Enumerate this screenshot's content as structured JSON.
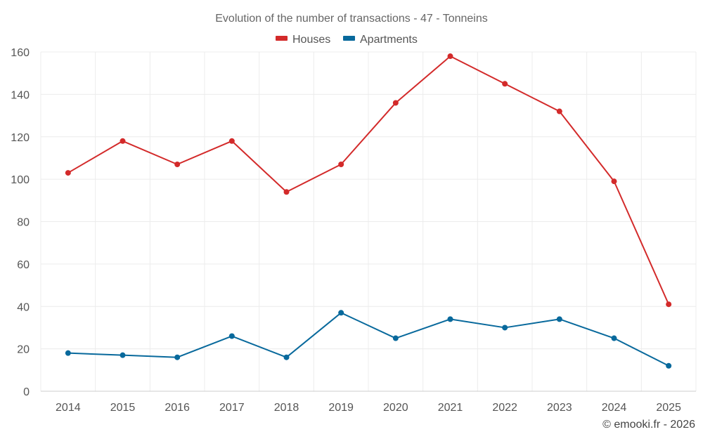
{
  "chart_data": {
    "type": "line",
    "title": "Evolution of the number of transactions - 47 - Tonneins",
    "categories": [
      "2014",
      "2015",
      "2016",
      "2017",
      "2018",
      "2019",
      "2020",
      "2021",
      "2022",
      "2023",
      "2024",
      "2025"
    ],
    "series": [
      {
        "name": "Houses",
        "color": "#d32a2a",
        "values": [
          103,
          118,
          107,
          118,
          94,
          107,
          136,
          158,
          145,
          132,
          99,
          41
        ]
      },
      {
        "name": "Apartments",
        "color": "#08699c",
        "values": [
          18,
          17,
          16,
          26,
          16,
          37,
          25,
          34,
          30,
          34,
          25,
          12
        ]
      }
    ],
    "ylim": [
      0,
      160
    ],
    "yticks": [
      0,
      20,
      40,
      60,
      80,
      100,
      120,
      140,
      160
    ],
    "xlabel": "",
    "ylabel": "",
    "grid": true,
    "legend": "top-center"
  },
  "credit": "© emooki.fr - 2026"
}
